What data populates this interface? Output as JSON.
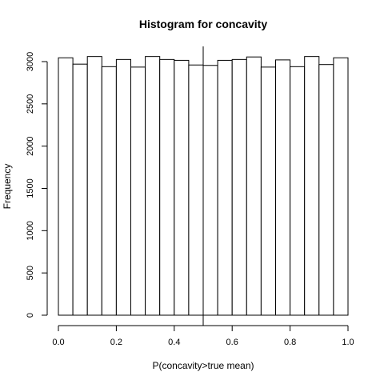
{
  "chart_data": {
    "type": "bar",
    "title": "Histogram for concavity",
    "xlabel": "P(concavity>true mean)",
    "ylabel": "Frequency",
    "bin_edges": [
      0.0,
      0.05,
      0.1,
      0.15,
      0.2,
      0.25,
      0.3,
      0.35,
      0.4,
      0.45,
      0.5,
      0.55,
      0.6,
      0.65,
      0.7,
      0.75,
      0.8,
      0.85,
      0.9,
      0.95,
      1.0
    ],
    "values": [
      3045,
      2970,
      3060,
      2940,
      3025,
      2935,
      3060,
      3025,
      3015,
      2960,
      2955,
      3015,
      3025,
      3055,
      2935,
      3020,
      2940,
      3060,
      2965,
      3045
    ],
    "xlim": [
      0.0,
      1.0
    ],
    "ylim": [
      0,
      3150
    ],
    "xticks": [
      0.0,
      0.2,
      0.4,
      0.6,
      0.8,
      1.0
    ],
    "xtick_labels": [
      "0.0",
      "0.2",
      "0.4",
      "0.6",
      "0.8",
      "1.0"
    ],
    "yticks": [
      0,
      500,
      1000,
      1500,
      2000,
      2500,
      3000
    ],
    "ytick_labels": [
      "0",
      "500",
      "1000",
      "1500",
      "2000",
      "2500",
      "3000"
    ],
    "reference_line_x": 0.5,
    "grid": false,
    "legend": "none"
  }
}
